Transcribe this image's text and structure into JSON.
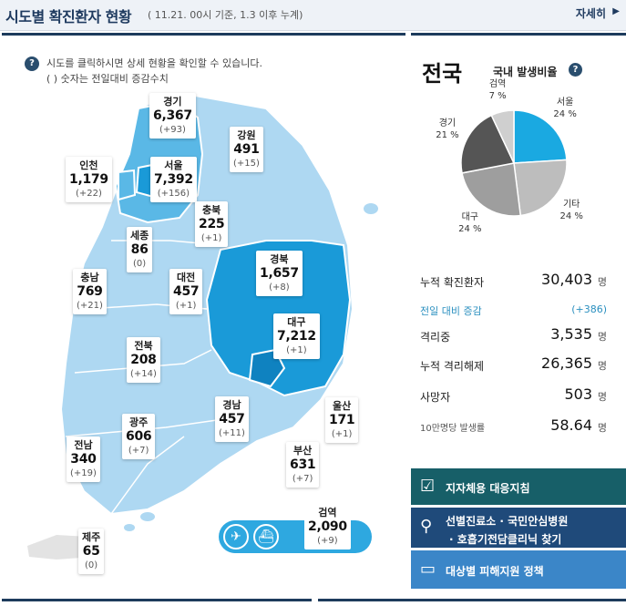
{
  "header": {
    "title": "시도별 확진환자 현황",
    "subtitle": "( 11.21. 00시 기준, 1.3 이후 누계)",
    "more_label": "자세히",
    "more_icon": "chevron-right-icon"
  },
  "notice": {
    "line1": "시도를 클릭하시면 상세 현황을 확인할 수 있습니다.",
    "line2": "( ) 숫자는 전일대비 증감수치",
    "icon": "question-icon",
    "icon_glyph": "?"
  },
  "regions": {
    "gyeonggi": {
      "name": "경기",
      "count": "6,367",
      "diff": "(+93)"
    },
    "gangwon": {
      "name": "강원",
      "count": "491",
      "diff": "(+15)"
    },
    "incheon": {
      "name": "인천",
      "count": "1,179",
      "diff": "(+22)"
    },
    "seoul": {
      "name": "서울",
      "count": "7,392",
      "diff": "(+156)"
    },
    "chungbuk": {
      "name": "충북",
      "count": "225",
      "diff": "(+1)"
    },
    "sejong": {
      "name": "세종",
      "count": "86",
      "diff": "(0)"
    },
    "gyeongbuk": {
      "name": "경북",
      "count": "1,657",
      "diff": "(+8)"
    },
    "chungnam": {
      "name": "충남",
      "count": "769",
      "diff": "(+21)"
    },
    "daejeon": {
      "name": "대전",
      "count": "457",
      "diff": "(+1)"
    },
    "daegu": {
      "name": "대구",
      "count": "7,212",
      "diff": "(+1)"
    },
    "jeonbuk": {
      "name": "전북",
      "count": "208",
      "diff": "(+14)"
    },
    "gyeongnam": {
      "name": "경남",
      "count": "457",
      "diff": "(+11)"
    },
    "ulsan": {
      "name": "울산",
      "count": "171",
      "diff": "(+1)"
    },
    "gwangju": {
      "name": "광주",
      "count": "606",
      "diff": "(+7)"
    },
    "jeonnam": {
      "name": "전남",
      "count": "340",
      "diff": "(+19)"
    },
    "busan": {
      "name": "부산",
      "count": "631",
      "diff": "(+7)"
    },
    "jeju": {
      "name": "제주",
      "count": "65",
      "diff": "(0)"
    },
    "airport": {
      "name": "검역",
      "count": "2,090",
      "diff": "(+9)"
    }
  },
  "transport": {
    "icons": [
      "airplane-icon",
      "ship-icon"
    ],
    "glyphs": [
      "✈",
      "⛴"
    ]
  },
  "colors": {
    "accent_dark": "#1d3b5c",
    "map_light": "#aed8f2",
    "map_mid": "#5ab8e6",
    "map_dark": "#1a9ad8",
    "pie_seoul": "#1aa9e1",
    "pie_others": "#bdbdbd",
    "pie_daegu": "#9e9e9e",
    "pie_gyeonggi": "#555555",
    "pie_quarantine": "#cfcfcf"
  },
  "national": {
    "title": "전국",
    "ratio_title": "국내 발생비율",
    "ratio_icon": "question-icon",
    "ratio_glyph": "?",
    "chart_data": {
      "type": "pie",
      "title": "국내 발생비율",
      "slices": [
        {
          "name": "서울",
          "value": 24,
          "label": "24 %"
        },
        {
          "name": "기타",
          "value": 24,
          "label": "24 %"
        },
        {
          "name": "대구",
          "value": 24,
          "label": "24 %"
        },
        {
          "name": "경기",
          "value": 21,
          "label": "21 %"
        },
        {
          "name": "검역",
          "value": 7,
          "label": "7 %"
        }
      ]
    },
    "stats": [
      {
        "label": "누적 확진환자",
        "value": "30,403",
        "unit": "명"
      },
      {
        "label": "전일 대비 증감",
        "value": "(+386)",
        "unit": ""
      },
      {
        "label": "격리중",
        "value": "3,535",
        "unit": "명"
      },
      {
        "label": "누적 격리해제",
        "value": "26,365",
        "unit": "명"
      },
      {
        "label": "사망자",
        "value": "503",
        "unit": "명"
      },
      {
        "label": "10만명당 발생률",
        "value": "58.64",
        "unit": "명"
      }
    ]
  },
  "links": {
    "btn1": {
      "label": "지자체용 대응지침",
      "icon": "document-check-icon",
      "glyph": "☑"
    },
    "btn2": {
      "line1": "선별진료소 · 국민안심병원",
      "line2": "· 호흡기전담클리닉 찾기",
      "icon": "location-pin-icon",
      "glyph": "⚲"
    },
    "btn3": {
      "label": "대상별 피해지원 정책",
      "icon": "folder-icon",
      "glyph": "▭"
    }
  }
}
